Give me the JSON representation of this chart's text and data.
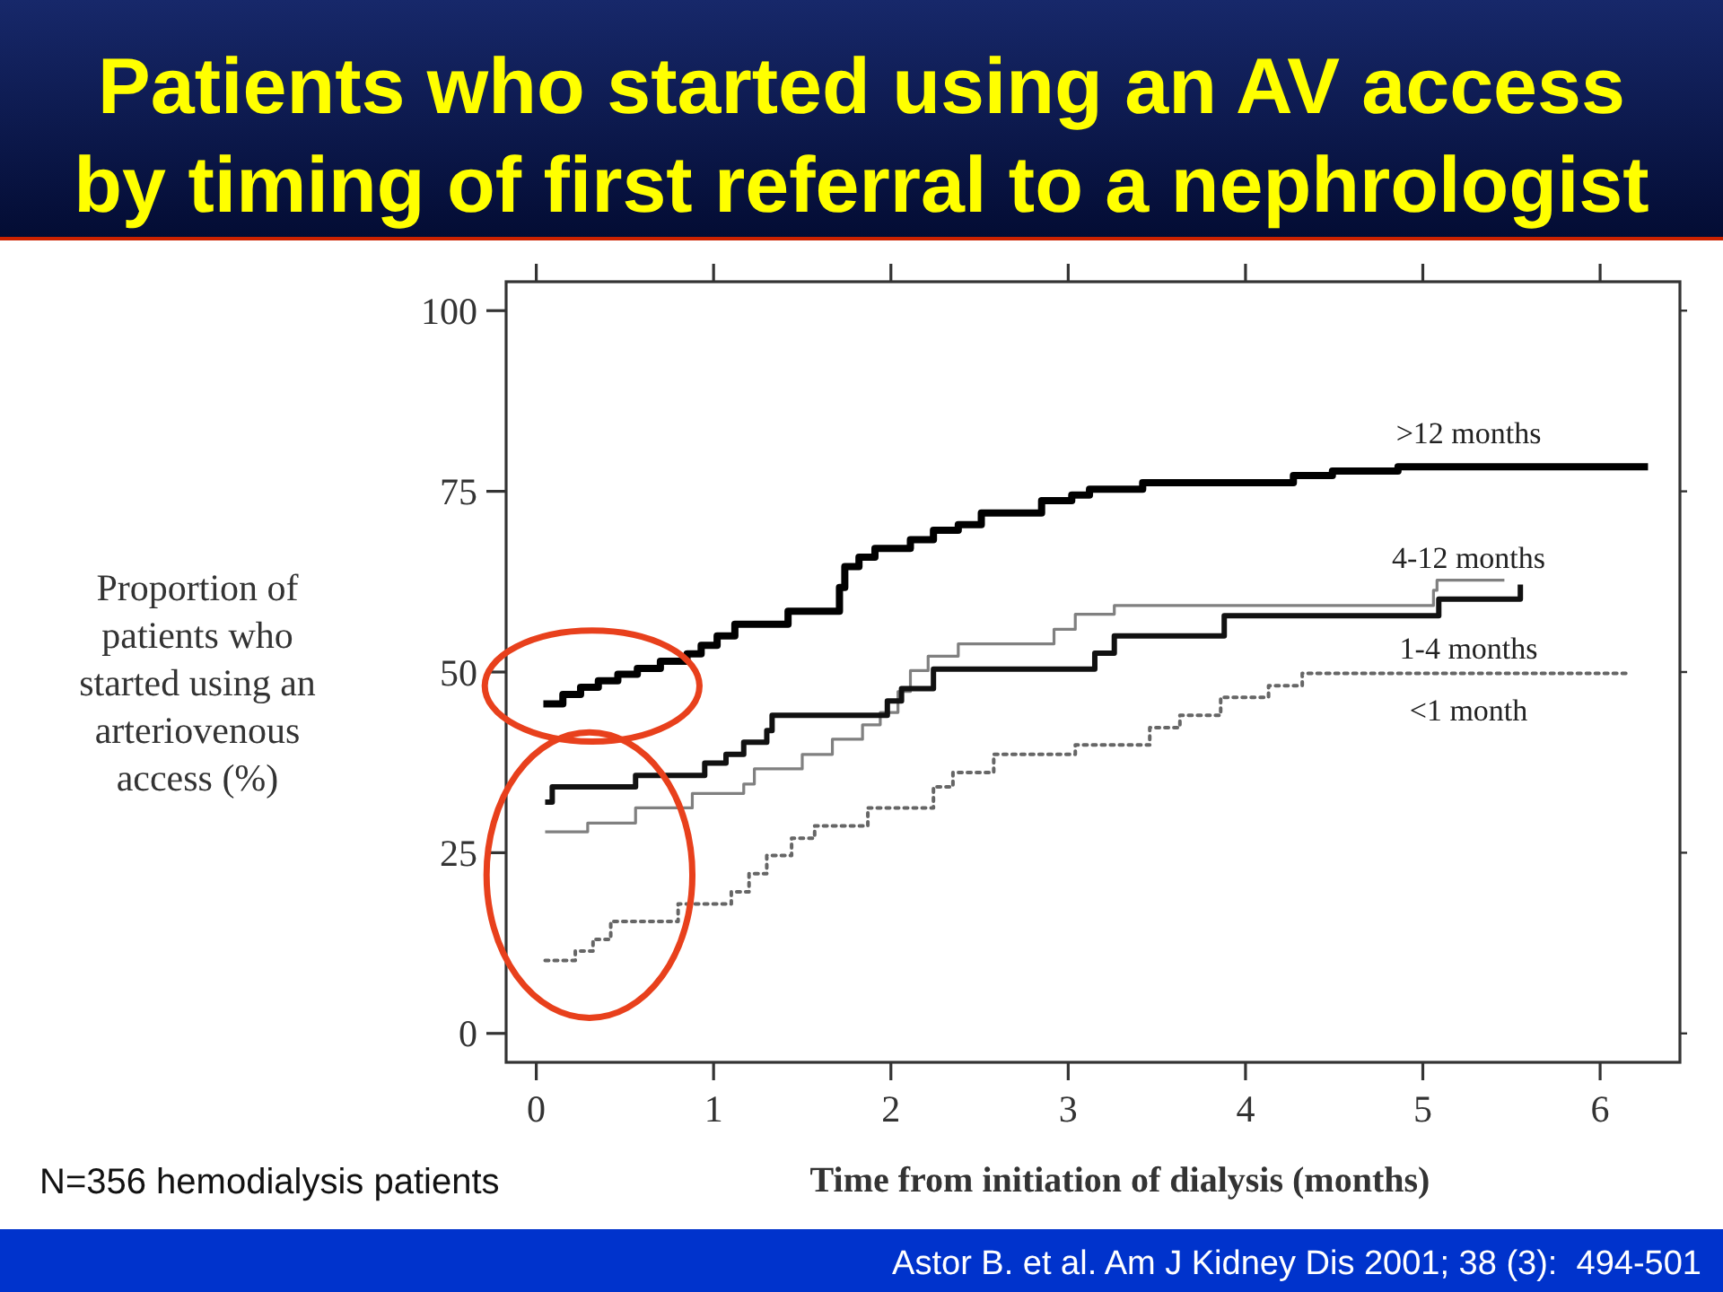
{
  "chart_data": {
    "type": "step",
    "title": "Patients who started using an AV access by timing of first referral to a nephrologist",
    "xlabel": "Time from initiation of dialysis (months)",
    "ylabel": "Proportion of patients who started using an arteriovenous access (%)",
    "annotations": [
      "N=356 hemodialysis patients",
      "Astor B. et al. Am J Kidney Dis 2001; 38 (3):  494-501"
    ],
    "xlim": [
      -0.17,
      6.45
    ],
    "ylim": [
      -4,
      104
    ],
    "xticks": [
      0,
      1,
      2,
      3,
      4,
      5,
      6
    ],
    "yticks": [
      0,
      25,
      50,
      75,
      100
    ],
    "series": [
      {
        "name": ">12 months",
        "color": "#000000",
        "line_style": "solid",
        "x": [
          0.04,
          0.15,
          0.25,
          0.35,
          0.46,
          0.57,
          0.7,
          0.85,
          0.93,
          1.02,
          1.12,
          1.42,
          1.71,
          1.74,
          1.82,
          1.91,
          2.11,
          2.24,
          2.38,
          2.51,
          2.85,
          3.02,
          3.12,
          3.42,
          4.27,
          4.49,
          4.86,
          6.27
        ],
        "values": [
          45.6,
          46.9,
          47.9,
          48.8,
          49.7,
          50.5,
          51.5,
          52.5,
          53.7,
          55.0,
          56.6,
          58.4,
          61.7,
          64.6,
          65.9,
          67.1,
          68.3,
          69.6,
          70.4,
          72.0,
          73.7,
          74.5,
          75.3,
          76.2,
          77.2,
          77.8,
          78.4,
          78.4
        ]
      },
      {
        "name": "4-12 months",
        "color": "#808080",
        "line_style": "solid",
        "x": [
          0.05,
          0.29,
          0.56,
          0.88,
          1.17,
          1.23,
          1.5,
          1.67,
          1.84,
          1.94,
          2.04,
          2.11,
          2.21,
          2.38,
          2.92,
          3.04,
          3.26,
          5.06,
          5.08,
          5.46
        ],
        "values": [
          27.9,
          29.1,
          31.2,
          33.2,
          34.5,
          36.6,
          38.6,
          40.7,
          42.7,
          44.4,
          47.3,
          50.2,
          52.2,
          53.9,
          55.9,
          58.0,
          59.2,
          61.3,
          62.7,
          62.7
        ]
      },
      {
        "name": "1-4 months",
        "color": "#111111",
        "line_style": "solid",
        "x": [
          0.05,
          0.09,
          0.56,
          0.95,
          1.07,
          1.17,
          1.3,
          1.33,
          1.98,
          2.06,
          2.24,
          3.15,
          3.26,
          3.88,
          5.09,
          5.55
        ],
        "values": [
          32.0,
          34.1,
          35.7,
          37.4,
          38.6,
          40.3,
          41.9,
          44.0,
          46.0,
          47.7,
          50.4,
          52.6,
          55.0,
          57.8,
          60.1,
          62.1
        ]
      },
      {
        "name": "<1 month",
        "color": "#666666",
        "line_style": "dotted",
        "x": [
          0.05,
          0.22,
          0.32,
          0.42,
          0.8,
          1.1,
          1.2,
          1.3,
          1.44,
          1.57,
          1.87,
          2.24,
          2.35,
          2.58,
          3.04,
          3.46,
          3.63,
          3.86,
          4.13,
          4.32,
          6.17
        ],
        "values": [
          10.1,
          11.4,
          13.0,
          15.5,
          17.9,
          19.6,
          22.1,
          24.6,
          27.0,
          28.7,
          31.2,
          34.1,
          36.1,
          38.6,
          39.9,
          42.3,
          44.0,
          46.5,
          48.1,
          49.8,
          49.8
        ]
      }
    ]
  }
}
